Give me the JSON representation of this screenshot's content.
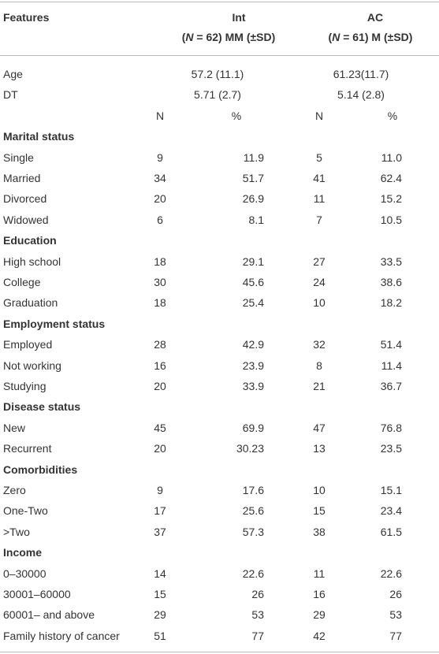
{
  "header": {
    "features": "Features",
    "int": {
      "title": "Int",
      "open": "(",
      "n": "N",
      "rest": " = 62) MM (±SD)"
    },
    "ac": {
      "title": "AC",
      "open": "(",
      "n": "N",
      "rest": " = 61) M (±SD)"
    }
  },
  "rows": [
    {
      "label": "Age",
      "int": "57.2 (11.1)",
      "ac": "61.23(11.7)"
    },
    {
      "label": "DT",
      "int": "5.71 (2.7)",
      "ac": "5.14 (2.8)"
    },
    {
      "units": [
        "N",
        "%",
        "N",
        "%"
      ]
    },
    {
      "section": "Marital status"
    },
    {
      "label": "Single",
      "cells": [
        "9",
        "11.9",
        "5",
        "11.0"
      ]
    },
    {
      "label": "Married",
      "cells": [
        "34",
        "51.7",
        "41",
        "62.4"
      ]
    },
    {
      "label": "Divorced",
      "cells": [
        "20",
        "26.9",
        "11",
        "15.2"
      ]
    },
    {
      "label": "Widowed",
      "cells": [
        "6",
        "8.1",
        "7",
        "10.5"
      ]
    },
    {
      "section": "Education"
    },
    {
      "label": "High school",
      "cells": [
        "18",
        "29.1",
        "27",
        "33.5"
      ]
    },
    {
      "label": "College",
      "cells": [
        "30",
        "45.6",
        "24",
        "38.6"
      ]
    },
    {
      "label": "Graduation",
      "cells": [
        "18",
        "25.4",
        "10",
        "18.2"
      ]
    },
    {
      "section": "Employment status"
    },
    {
      "label": "Employed",
      "cells": [
        "28",
        "42.9",
        "32",
        "51.4"
      ]
    },
    {
      "label": "Not working",
      "cells": [
        "16",
        "23.9",
        "8",
        "11.4"
      ]
    },
    {
      "label": "Studying",
      "cells": [
        "20",
        "33.9",
        "21",
        "36.7"
      ]
    },
    {
      "section": "Disease status"
    },
    {
      "label": "New",
      "cells": [
        "45",
        "69.9",
        "47",
        "76.8"
      ]
    },
    {
      "label": "Recurrent",
      "cells": [
        "20",
        "30.23",
        "13",
        "23.5"
      ]
    },
    {
      "section": "Comorbidities"
    },
    {
      "label": "Zero",
      "cells": [
        "9",
        "17.6",
        "10",
        "15.1"
      ]
    },
    {
      "label": "One-Two",
      "cells": [
        "17",
        "25.6",
        "15",
        "23.4"
      ]
    },
    {
      "label": ">Two",
      "cells": [
        "37",
        "57.3",
        "38",
        "61.5"
      ]
    },
    {
      "section": "Income"
    },
    {
      "label": "0–30000",
      "cells": [
        "14",
        "22.6",
        "11",
        "22.6"
      ]
    },
    {
      "label": "30001–60000",
      "cells": [
        "15",
        "26",
        "16",
        "26"
      ]
    },
    {
      "label": "60001– and above",
      "cells": [
        "29",
        "53",
        "29",
        "53"
      ]
    },
    {
      "label": "Family history of cancer",
      "cells": [
        "51",
        "77",
        "42",
        "77"
      ]
    }
  ]
}
